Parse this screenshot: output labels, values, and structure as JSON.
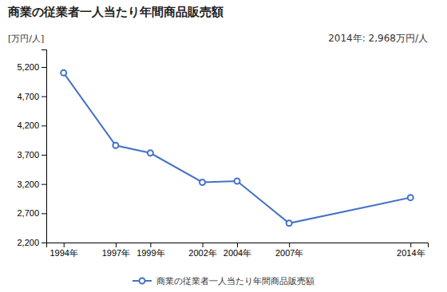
{
  "chart_data": {
    "type": "line",
    "title": "商業の従業者一人当たり年間商品販売額",
    "ylabel": "[万円/人]",
    "annotation": "2014年: 2,968万円/人",
    "x": [
      1994,
      1997,
      1999,
      2002,
      2004,
      2007,
      2014
    ],
    "series": [
      {
        "name": "商業の従業者一人当たり年間商品販売額",
        "color": "#4472C4",
        "marker": "circle",
        "line_style": "solid",
        "values": [
          5100,
          3860,
          3730,
          3230,
          3250,
          2530,
          2968
        ]
      }
    ],
    "xlim": [
      1993,
      2015
    ],
    "xticks": [
      {
        "value": 1994,
        "label": "1994年"
      },
      {
        "value": 1997,
        "label": "1997年"
      },
      {
        "value": 1999,
        "label": "1999年"
      },
      {
        "value": 2002,
        "label": "2002年"
      },
      {
        "value": 2004,
        "label": "2004年"
      },
      {
        "value": 2007,
        "label": "2007年"
      },
      {
        "value": 2014,
        "label": "2014年"
      }
    ],
    "ylim": [
      2200,
      5500
    ],
    "yticks": [
      {
        "value": 2200,
        "label": "2,200"
      },
      {
        "value": 2700,
        "label": "2,700"
      },
      {
        "value": 3200,
        "label": "3,200"
      },
      {
        "value": 3700,
        "label": "3,700"
      },
      {
        "value": 4200,
        "label": "4,200"
      },
      {
        "value": 4700,
        "label": "4,700"
      },
      {
        "value": 5200,
        "label": "5,200"
      }
    ],
    "grid": false,
    "legend": "bottom"
  }
}
